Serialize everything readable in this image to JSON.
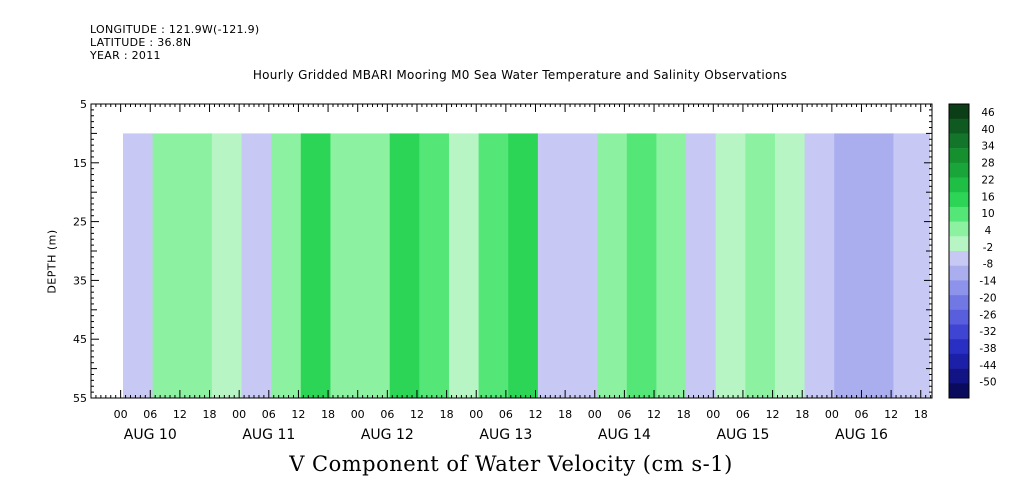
{
  "header": {
    "longitude": "LONGITUDE : 121.9W(-121.9)",
    "latitude": "LATITUDE : 36.8N",
    "year": "YEAR : 2011"
  },
  "chart_data": {
    "type": "heatmap",
    "title": "Hourly Gridded MBARI Mooring M0 Sea Water Temperature and Salinity Observations",
    "xlabel": "V Component of Water Velocity (cm s-1)",
    "ylabel": "DEPTH (m)",
    "y_ticks": [
      5,
      15,
      25,
      35,
      45,
      55
    ],
    "ylim": [
      55,
      5
    ],
    "data_depth_range": [
      10,
      55
    ],
    "x_hour_labels": [
      "00",
      "06",
      "12",
      "18",
      "00",
      "06",
      "12",
      "18",
      "00",
      "06",
      "12",
      "18",
      "00",
      "06",
      "12",
      "18",
      "00",
      "06",
      "12",
      "18",
      "00",
      "06",
      "12",
      "18",
      "00",
      "06",
      "12",
      "18"
    ],
    "x_day_labels": [
      "AUG 10",
      "AUG 11",
      "AUG 12",
      "AUG 13",
      "AUG 14",
      "AUG 15",
      "AUG 16"
    ],
    "colorbar_labels": [
      "46",
      "40",
      "34",
      "28",
      "22",
      "16",
      "10",
      "4",
      "-2",
      "-8",
      "-14",
      "-20",
      "-26",
      "-32",
      "-38",
      "-44",
      "-50"
    ],
    "colorbar_colors": [
      "#0b3d16",
      "#0f5a20",
      "#13752a",
      "#16902f",
      "#1aa53a",
      "#1fbe44",
      "#2cd556",
      "#54e677",
      "#8cf2a2",
      "#b8f5c4",
      "#c7c9f4",
      "#aaaeef",
      "#8d93ea",
      "#7278e3",
      "#585edc",
      "#3f44d3",
      "#2a2fc4",
      "#1c1fa8",
      "#121485",
      "#0a0b5c"
    ],
    "columns": [
      {
        "day": 10,
        "hour": 3,
        "v": -2
      },
      {
        "day": 10,
        "hour": 9,
        "v": 4
      },
      {
        "day": 10,
        "hour": 15,
        "v": 6
      },
      {
        "day": 10,
        "hour": 21,
        "v": 0
      },
      {
        "day": 11,
        "hour": 3,
        "v": -6
      },
      {
        "day": 11,
        "hour": 9,
        "v": 6
      },
      {
        "day": 11,
        "hour": 15,
        "v": 14
      },
      {
        "day": 11,
        "hour": 21,
        "v": 8
      },
      {
        "day": 12,
        "hour": 3,
        "v": 4
      },
      {
        "day": 12,
        "hour": 9,
        "v": 16
      },
      {
        "day": 12,
        "hour": 15,
        "v": 12
      },
      {
        "day": 12,
        "hour": 21,
        "v": 2
      },
      {
        "day": 13,
        "hour": 3,
        "v": 10
      },
      {
        "day": 13,
        "hour": 9,
        "v": 14
      },
      {
        "day": 13,
        "hour": 15,
        "v": -2
      },
      {
        "day": 13,
        "hour": 21,
        "v": -4
      },
      {
        "day": 14,
        "hour": 3,
        "v": 4
      },
      {
        "day": 14,
        "hour": 9,
        "v": 12
      },
      {
        "day": 14,
        "hour": 15,
        "v": 6
      },
      {
        "day": 14,
        "hour": 21,
        "v": -4
      },
      {
        "day": 15,
        "hour": 3,
        "v": 2
      },
      {
        "day": 15,
        "hour": 9,
        "v": 6
      },
      {
        "day": 15,
        "hour": 15,
        "v": 0
      },
      {
        "day": 15,
        "hour": 21,
        "v": -6
      },
      {
        "day": 16,
        "hour": 3,
        "v": -8
      },
      {
        "day": 16,
        "hour": 9,
        "v": -12
      },
      {
        "day": 16,
        "hour": 15,
        "v": -4
      },
      {
        "day": 16,
        "hour": 21,
        "v": -6
      }
    ]
  }
}
